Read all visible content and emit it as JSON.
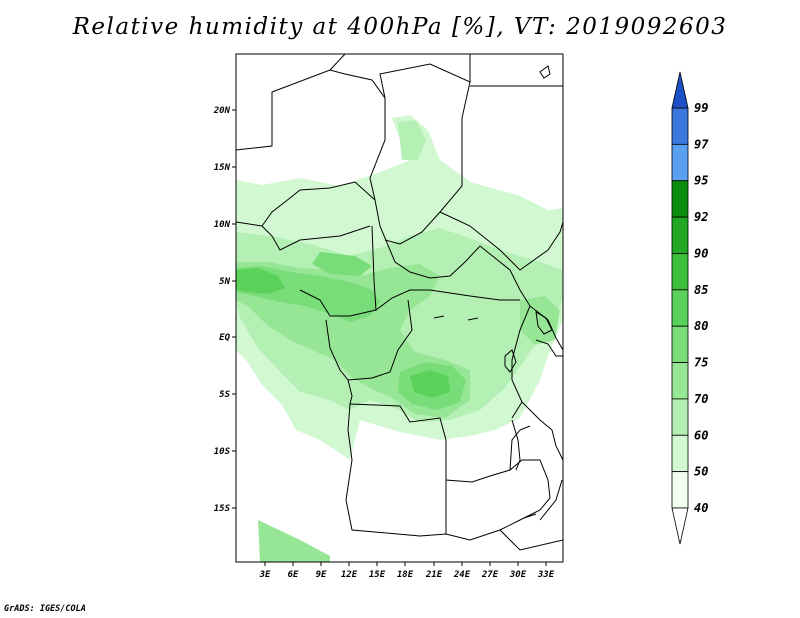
{
  "title": "Relative humidity at 400hPa [%], VT: 2019092603",
  "credit": "GrADS: IGES/COLA",
  "map": {
    "lat_ticks": [
      "20N",
      "15N",
      "10N",
      "5N",
      "EQ",
      "5S",
      "10S",
      "15S"
    ],
    "lon_ticks": [
      "3E",
      "6E",
      "9E",
      "12E",
      "15E",
      "18E",
      "21E",
      "24E",
      "27E",
      "30E",
      "33E"
    ]
  },
  "colorbar": {
    "labels": [
      "99",
      "97",
      "95",
      "92",
      "90",
      "85",
      "80",
      "75",
      "70",
      "60",
      "50",
      "40"
    ],
    "colors": [
      "#1e50c8",
      "#3c78dc",
      "#5aa0f0",
      "#0c8c0c",
      "#22a822",
      "#3cbe3c",
      "#5ad25a",
      "#78dc78",
      "#96e696",
      "#b4f0b4",
      "#d2f8d2",
      "#f0fff0"
    ]
  }
}
